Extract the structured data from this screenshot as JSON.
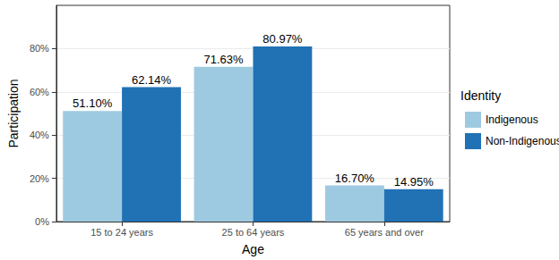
{
  "chart_data": {
    "type": "bar",
    "x_label": "Age",
    "y_label": "Participation",
    "legend_title": "Identity",
    "categories": [
      "15 to 24 years",
      "25 to 64 years",
      "65 years and over"
    ],
    "series": [
      {
        "name": "Indigenous",
        "color": "#9ecae1",
        "values": [
          51.1,
          71.63,
          16.7
        ],
        "value_labels": [
          "51.10%",
          "71.63%",
          "16.70%"
        ]
      },
      {
        "name": "Non-Indigenous",
        "color": "#2171b5",
        "values": [
          62.14,
          80.97,
          14.95
        ],
        "value_labels": [
          "62.14%",
          "80.97%",
          "14.95%"
        ]
      }
    ],
    "ylim": [
      0,
      100
    ],
    "yticks": [
      {
        "value": 0,
        "label": "0%"
      },
      {
        "value": 20,
        "label": "20%"
      },
      {
        "value": 40,
        "label": "40%"
      },
      {
        "value": 60,
        "label": "60%"
      },
      {
        "value": 80,
        "label": "80%"
      }
    ],
    "grid": true,
    "legend": "right",
    "data_labels": true
  }
}
